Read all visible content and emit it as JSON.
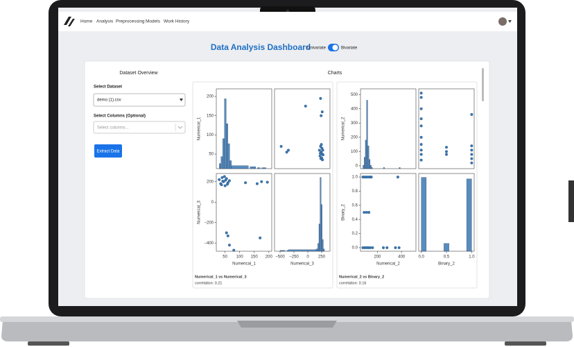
{
  "nav": {
    "links": [
      "Home",
      "Analysis",
      "Preprocessing",
      "Models",
      "Work History"
    ]
  },
  "header": {
    "title": "Data Analysis Dashboard",
    "toggle": {
      "left": "Univariate",
      "right": "Bivariate"
    }
  },
  "sidebar": {
    "title": "Dataset Overview",
    "dataset_label": "Select Dataset",
    "dataset_value": "demo (1).csv",
    "columns_label": "Select Columns (Optional)",
    "columns_placeholder": "Select columns...",
    "button": "Extract Data"
  },
  "charts": {
    "title": "Charts"
  },
  "pairplots": [
    {
      "caption": "Numerical_1 vs Numerical_3",
      "correlation": "correlation: 0.21",
      "color": "#3b78b4",
      "rows": [
        {
          "label": "Numerical_1",
          "ylim": [
            12,
            220
          ],
          "yticks": [
            50,
            100,
            150,
            200
          ]
        },
        {
          "label": "Numerical_3",
          "ylim": [
            -480,
            280
          ],
          "yticks": [
            200,
            0,
            {
              "value": -200,
              "label": "−200"
            },
            {
              "value": -400,
              "label": "−400"
            }
          ]
        }
      ],
      "cols": [
        {
          "label": "Numerical_1",
          "xlim": [
            20,
            210
          ],
          "xticks": [
            50,
            100,
            150,
            200
          ]
        },
        {
          "label": "Numerical_3",
          "xlim": [
            -600,
            400
          ],
          "xticks": [
            {
              "value": -500,
              "label": "−500"
            },
            {
              "value": -250,
              "label": "−250"
            },
            0,
            250
          ]
        }
      ],
      "cells": [
        [
          {
            "type": "hist",
            "bins": [
              30,
              36,
              42,
              48,
              54,
              60,
              66,
              72,
              130,
              136,
              155,
              161,
              170,
              176,
              190,
              196
            ],
            "counts": [
              5,
              12,
              30,
              70,
              45,
              25,
              8,
              3,
              0,
              2,
              0,
              1,
              0,
              1,
              0
            ],
            "ylim": [
              0,
              80
            ]
          },
          {
            "type": "scatter",
            "points": [
              [
                -480,
                70
              ],
              [
                -380,
                55
              ],
              [
                -350,
                60
              ],
              [
                -40,
                175
              ],
              [
                230,
                195
              ],
              [
                260,
                160
              ],
              [
                240,
                150
              ],
              [
                210,
                60
              ],
              [
                220,
                45
              ],
              [
                230,
                70
              ],
              [
                240,
                55
              ],
              [
                250,
                40
              ],
              [
                255,
                65
              ],
              [
                260,
                50
              ],
              [
                265,
                35
              ],
              [
                270,
                60
              ],
              [
                235,
                38
              ],
              [
                245,
                75
              ],
              [
                225,
                52
              ],
              [
                275,
                48
              ]
            ]
          }
        ],
        [
          {
            "type": "scatter",
            "points": [
              [
                30,
                220
              ],
              [
                35,
                180
              ],
              [
                40,
                240
              ],
              [
                45,
                200
              ],
              [
                50,
                160
              ],
              [
                55,
                230
              ],
              [
                60,
                190
              ],
              [
                65,
                210
              ],
              [
                38,
                170
              ],
              [
                48,
                250
              ],
              [
                58,
                175
              ],
              [
                42,
                205
              ],
              [
                52,
                215
              ],
              [
                120,
                190
              ],
              [
                160,
                180
              ],
              [
                175,
                200
              ],
              [
                195,
                195
              ],
              [
                60,
                -330
              ],
              [
                55,
                -300
              ],
              [
                65,
                -420
              ],
              [
                170,
                -350
              ],
              [
                80,
                -470
              ]
            ]
          },
          {
            "type": "hist",
            "bins": [
              -500,
              -470,
              -440,
              -410,
              -380,
              -350,
              150,
              180,
              200,
              220,
              240,
              260,
              280,
              300
            ],
            "counts": [
              1,
              1,
              1,
              0,
              1,
              2,
              3,
              10,
              35,
              95,
              60,
              15,
              3
            ],
            "ylim": [
              0,
              100
            ]
          }
        ]
      ]
    },
    {
      "caption": "Numerical_2 vs Binary_2",
      "correlation": "correlation: 0.16",
      "color": "#3b78b4",
      "rows": [
        {
          "label": "Numerical_2",
          "ylim": [
            -20,
            540
          ],
          "yticks": [
            0,
            100,
            200,
            300,
            400,
            500
          ]
        },
        {
          "label": "Binary_2",
          "ylim": [
            -0.05,
            1.05
          ],
          "yticks": [
            {
              "value": 0,
              "label": "0.0"
            },
            {
              "value": 0.2,
              "label": "0.2"
            },
            {
              "value": 0.4,
              "label": "0.4"
            },
            {
              "value": 0.6,
              "label": "0.6"
            },
            {
              "value": 0.8,
              "label": "0.8"
            },
            {
              "value": 1,
              "label": "1.0"
            }
          ]
        }
      ],
      "cols": [
        {
          "label": "Numerical_2",
          "xlim": [
            60,
            520
          ],
          "xticks": [
            200,
            400
          ]
        },
        {
          "label": "Binary_2",
          "xlim": [
            -0.05,
            1.05
          ],
          "xticks": [
            {
              "value": 0,
              "label": "0.0"
            },
            {
              "value": 0.5,
              "label": "0.5"
            },
            {
              "value": 1,
              "label": "1.0"
            }
          ]
        }
      ],
      "cells": [
        [
          {
            "type": "hist",
            "bins": [
              80,
              90,
              100,
              110,
              120,
              130,
              140,
              150,
              160,
              250,
              260,
              380,
              390
            ],
            "counts": [
              3,
              10,
              25,
              60,
              20,
              8,
              3,
              1,
              0,
              1,
              0,
              1
            ],
            "ylim": [
              0,
              70
            ]
          },
          {
            "type": "scatter",
            "points": [
              [
                0,
                510
              ],
              [
                0,
                480
              ],
              [
                0,
                400
              ],
              [
                0,
                330
              ],
              [
                0,
                280
              ],
              [
                0,
                200
              ],
              [
                0,
                150
              ],
              [
                0,
                110
              ],
              [
                0,
                80
              ],
              [
                0,
                40
              ],
              [
                0.5,
                130
              ],
              [
                0.5,
                100
              ],
              [
                0.5,
                80
              ],
              [
                1,
                360
              ],
              [
                1,
                140
              ],
              [
                1,
                110
              ],
              [
                1,
                80
              ],
              [
                1,
                50
              ],
              [
                1,
                20
              ]
            ]
          }
        ],
        [
          {
            "type": "scatter",
            "points": [
              [
                80,
                1
              ],
              [
                95,
                1
              ],
              [
                110,
                1
              ],
              [
                125,
                1
              ],
              [
                140,
                1
              ],
              [
                150,
                1
              ],
              [
                370,
                1
              ],
              [
                90,
                0.5
              ],
              [
                110,
                0.5
              ],
              [
                130,
                0.5
              ],
              [
                80,
                0
              ],
              [
                95,
                0
              ],
              [
                110,
                0
              ],
              [
                125,
                0
              ],
              [
                140,
                0
              ],
              [
                160,
                0
              ],
              [
                250,
                0
              ],
              [
                280,
                0
              ],
              [
                350,
                0
              ],
              [
                380,
                0
              ]
            ]
          },
          {
            "type": "hist",
            "bins": [
              0,
              0.1,
              0.2,
              0.3,
              0.4,
              0.45,
              0.55,
              0.6,
              0.7,
              0.8,
              0.9,
              1
            ],
            "counts": [
              95,
              0,
              0,
              0,
              0,
              10,
              0,
              0,
              0,
              0,
              93
            ],
            "ylim": [
              0,
              100
            ]
          }
        ]
      ]
    }
  ]
}
